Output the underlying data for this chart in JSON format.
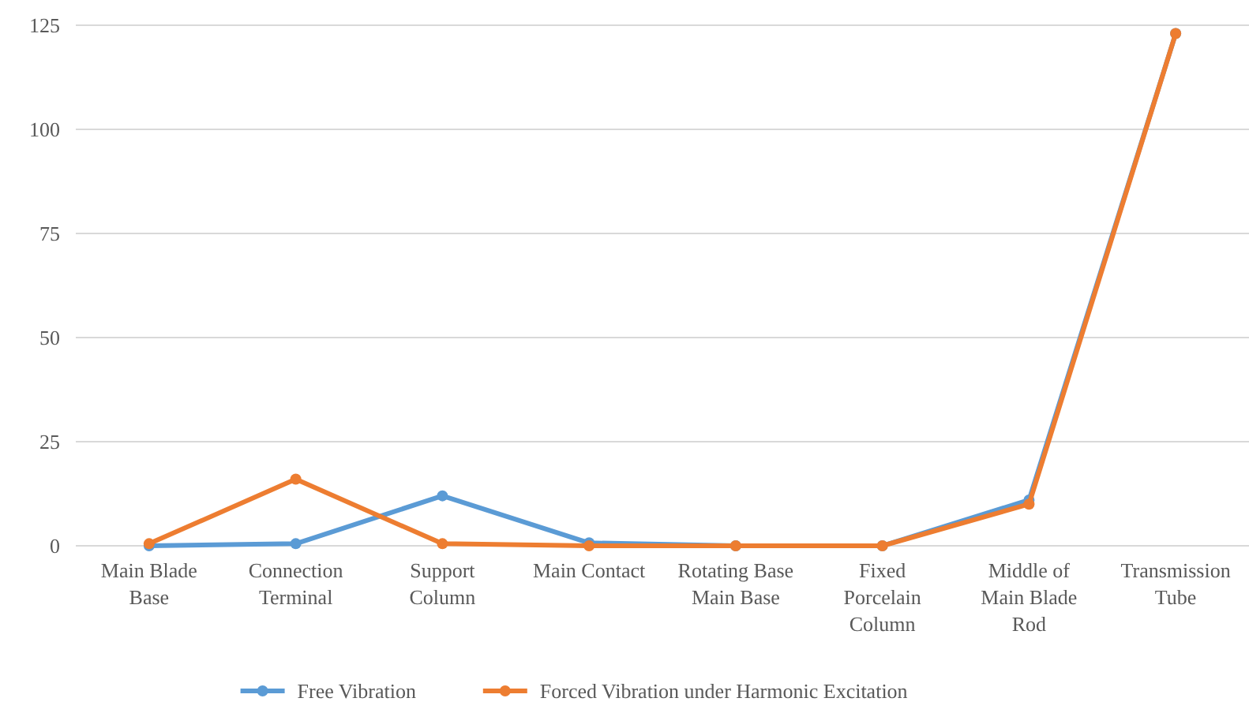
{
  "chart_data": {
    "type": "line",
    "categories": [
      "Main Blade Base",
      "Connection Terminal",
      "Support Column",
      "Main Contact",
      "Rotating Base Main Base",
      "Fixed Porcelain Column",
      "Middle of Main Blade Rod",
      "Transmission Tube"
    ],
    "series": [
      {
        "name": "Free Vibration",
        "color": "#5b9bd5",
        "values": [
          0,
          0.5,
          12,
          0.7,
          0,
          0,
          11,
          123
        ]
      },
      {
        "name": "Forced Vibration under Harmonic Excitation",
        "color": "#ed7d31",
        "values": [
          0.5,
          16,
          0.5,
          0,
          0,
          0,
          10,
          123
        ]
      }
    ],
    "ylim": [
      0,
      125
    ],
    "yticks": [
      0,
      25,
      50,
      75,
      100,
      125
    ],
    "grid": "y",
    "legend": "bottom",
    "marker": "circle",
    "line_style": "solid"
  }
}
